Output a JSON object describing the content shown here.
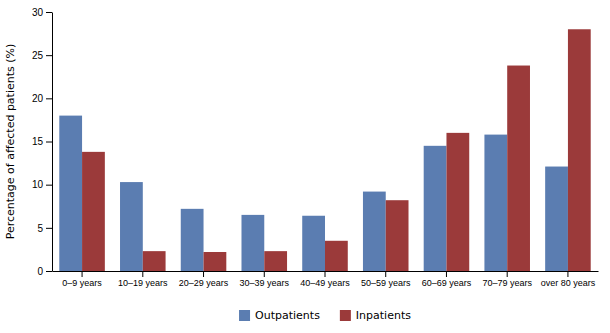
{
  "chart_data": {
    "type": "bar",
    "categories": [
      "0–9 years",
      "10–19 years",
      "20–29 years",
      "30–39 years",
      "40–49 years",
      "50–59 years",
      "60–69 years",
      "70–79 years",
      "over 80 years"
    ],
    "series": [
      {
        "name": "Outpatients",
        "color": "#5b7db1",
        "values": [
          18.0,
          10.3,
          7.2,
          6.5,
          6.4,
          9.2,
          14.5,
          15.8,
          12.1
        ]
      },
      {
        "name": "Inpatients",
        "color": "#9b3a3a",
        "values": [
          13.8,
          2.3,
          2.2,
          2.3,
          3.5,
          8.2,
          16.0,
          23.8,
          28.0
        ]
      }
    ],
    "ylabel": "Percentage of affected patients (%)",
    "ylim": [
      0,
      30
    ],
    "yticks": [
      0,
      5,
      10,
      15,
      20,
      25,
      30
    ],
    "grid": false,
    "legend": "bottom"
  }
}
